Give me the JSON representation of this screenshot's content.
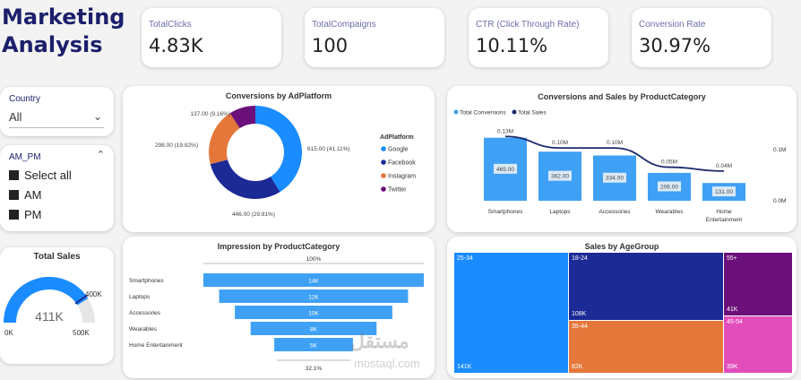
{
  "header": {
    "title_line1": "Marketing",
    "title_line2": "Analysis"
  },
  "kpis": [
    {
      "label": "TotalClicks",
      "value": "4.83K"
    },
    {
      "label": "TotalCompaigns",
      "value": "100"
    },
    {
      "label": "CTR (Click Through Rate)",
      "value": "10.11%"
    },
    {
      "label": "Conversion Rate",
      "value": "30.97%"
    }
  ],
  "slicers": {
    "country": {
      "label": "Country",
      "value": "All"
    },
    "ampm": {
      "label": "AM_PM",
      "options": [
        "Select all",
        "AM",
        "PM"
      ]
    }
  },
  "gauge": {
    "title": "Total Sales",
    "value_label": "411K",
    "min_label": "0K",
    "max_label": "500K",
    "target_label": "400K",
    "min": 0,
    "max": 500,
    "value": 411,
    "target": 400
  },
  "colors": {
    "blue": "#1a8cff",
    "navy": "#1c2a96",
    "orange": "#e5773a",
    "purple": "#6b0f7a",
    "pink": "#e24dba",
    "bar": "#3fa1f5",
    "line": "#1b2a6b"
  },
  "donut": {
    "title": "Conversions by AdPlatform",
    "legend_title": "AdPlatform",
    "segments": [
      {
        "name": "Google",
        "value": 615,
        "label": "615.00 (41.11%)",
        "color": "#1a8cff"
      },
      {
        "name": "Facebook",
        "value": 446,
        "label": "446.00 (29.81%)",
        "color": "#1c2a96"
      },
      {
        "name": "Instagram",
        "value": 298,
        "label": "298.00 (19.92%)",
        "color": "#e5773a"
      },
      {
        "name": "Twitter",
        "value": 137,
        "label": "137.00 (9.16%)",
        "color": "#6b0f7a"
      }
    ]
  },
  "combo": {
    "title": "Conversions and Sales by ProductCategory",
    "legend": [
      "Total Conversions",
      "Total Sales"
    ],
    "right_axis": [
      "0.1M",
      "0.0M"
    ],
    "categories": [
      {
        "name": "Smartphones",
        "conv": 465,
        "conv_label": "465.00",
        "sales": 0.13,
        "sales_label": "0.13M"
      },
      {
        "name": "Laptops",
        "conv": 362,
        "conv_label": "362.00",
        "sales": 0.1,
        "sales_label": "0.10M"
      },
      {
        "name": "Accessories",
        "conv": 334,
        "conv_label": "334.00",
        "sales": 0.1,
        "sales_label": "0.10M"
      },
      {
        "name": "Wearables",
        "conv": 206,
        "conv_label": "206.00",
        "sales": 0.05,
        "sales_label": "0.05M"
      },
      {
        "name": "Home Entertainment",
        "conv": 131,
        "conv_label": "131.00",
        "sales": 0.04,
        "sales_label": "0.04M"
      }
    ]
  },
  "funnel": {
    "title": "Impression by ProductCategory",
    "top_label": "100%",
    "bottom_label": "32.1%",
    "rows": [
      {
        "name": "Smartphones",
        "value": 14,
        "label": "14K"
      },
      {
        "name": "Laptops",
        "value": 12,
        "label": "12K"
      },
      {
        "name": "Accessories",
        "value": 10,
        "label": "10K"
      },
      {
        "name": "Wearables",
        "value": 8,
        "label": "8K"
      },
      {
        "name": "Home Entertainment",
        "value": 5,
        "label": "5K"
      }
    ]
  },
  "treemap": {
    "title": "Sales by AgeGroup",
    "cells": [
      {
        "name": "25-34",
        "value": "141K",
        "color": "#1a8cff"
      },
      {
        "name": "18-24",
        "value": "108K",
        "color": "#1c2a96"
      },
      {
        "name": "35-44",
        "value": "82K",
        "color": "#e5773a"
      },
      {
        "name": "55+",
        "value": "41K",
        "color": "#6b0f7a"
      },
      {
        "name": "45-54",
        "value": "39K",
        "color": "#e24dba"
      }
    ]
  },
  "watermark": {
    "arabic": "مستقل",
    "latin": "mostaql.com"
  }
}
